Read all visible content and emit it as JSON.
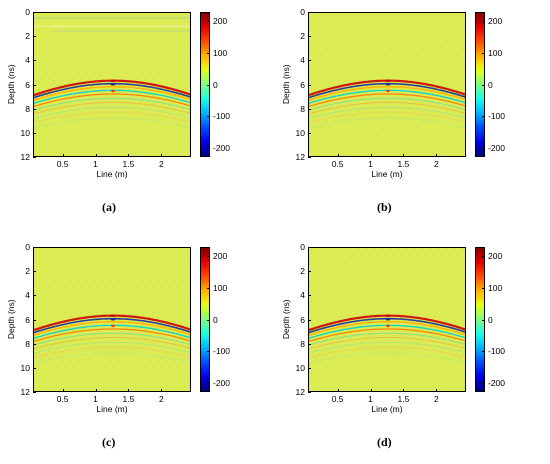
{
  "figure": {
    "panels": [
      {
        "id": "a",
        "caption": "(a)",
        "has_header_stripes": true
      },
      {
        "id": "b",
        "caption": "(b)",
        "has_header_stripes": false
      },
      {
        "id": "c",
        "caption": "(c)",
        "has_header_stripes": false
      },
      {
        "id": "d",
        "caption": "(d)",
        "has_header_stripes": false
      }
    ],
    "xlabel": "Line (m)",
    "ylabel": "Depth (ns)",
    "xticks": [
      "0.5",
      "1",
      "1.5",
      "2"
    ],
    "yticks": [
      "0",
      "2",
      "4",
      "6",
      "8",
      "10",
      "12"
    ],
    "colorbar_ticks": [
      "200",
      "100",
      "0",
      "-100",
      "-200"
    ]
  },
  "chart_data": [
    {
      "type": "heatmap",
      "panel": "a",
      "xlabel": "Line (m)",
      "ylabel": "Depth (ns)",
      "xlim": [
        0.05,
        2.45
      ],
      "ylim": [
        0,
        12
      ],
      "clim": [
        -230,
        230
      ],
      "feature": "hyperbola",
      "apex": {
        "x": 1.25,
        "depth_ns": 5.6
      },
      "colormap": "jet"
    },
    {
      "type": "heatmap",
      "panel": "b",
      "xlabel": "Line (m)",
      "ylabel": "Depth (ns)",
      "xlim": [
        0.05,
        2.45
      ],
      "ylim": [
        0,
        12
      ],
      "clim": [
        -230,
        230
      ],
      "feature": "hyperbola",
      "apex": {
        "x": 1.25,
        "depth_ns": 5.6
      },
      "colormap": "jet"
    },
    {
      "type": "heatmap",
      "panel": "c",
      "xlabel": "Line (m)",
      "ylabel": "Depth (ns)",
      "xlim": [
        0.05,
        2.45
      ],
      "ylim": [
        0,
        12
      ],
      "clim": [
        -230,
        230
      ],
      "feature": "hyperbola",
      "apex": {
        "x": 1.25,
        "depth_ns": 5.6
      },
      "colormap": "jet"
    },
    {
      "type": "heatmap",
      "panel": "d",
      "xlabel": "Line (m)",
      "ylabel": "Depth (ns)",
      "xlim": [
        0.05,
        2.45
      ],
      "ylim": [
        0,
        12
      ],
      "clim": [
        -230,
        230
      ],
      "feature": "hyperbola",
      "apex": {
        "x": 1.25,
        "depth_ns": 5.6
      },
      "colormap": "jet"
    }
  ]
}
